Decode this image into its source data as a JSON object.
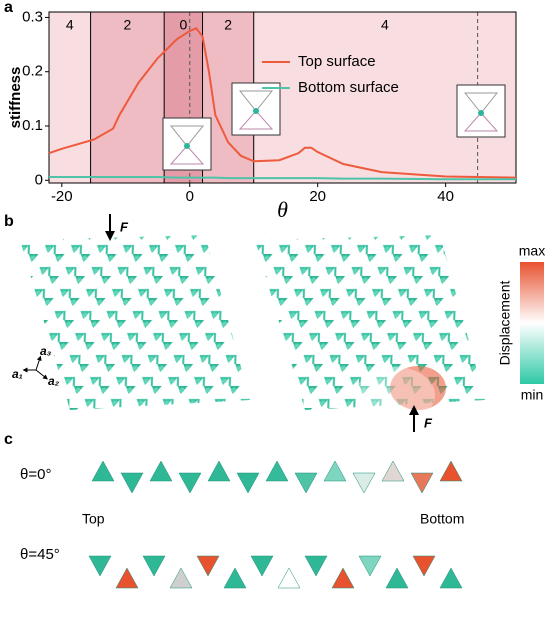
{
  "chart_data": {
    "type": "line",
    "x_label": "θ",
    "y_label": "stiffness",
    "x": [
      -22,
      -20,
      -15,
      -12,
      -11,
      -8,
      -5,
      -2,
      0,
      1,
      2,
      3,
      4,
      6,
      8,
      10,
      14,
      17,
      18,
      19,
      20,
      24,
      30,
      40,
      51
    ],
    "series": [
      {
        "name": "Top surface",
        "color": "#ee5a3c",
        "values": [
          0.05,
          0.058,
          0.075,
          0.095,
          0.12,
          0.18,
          0.225,
          0.26,
          0.275,
          0.28,
          0.265,
          0.2,
          0.12,
          0.07,
          0.045,
          0.035,
          0.037,
          0.05,
          0.06,
          0.06,
          0.052,
          0.03,
          0.015,
          0.007,
          0.005
        ]
      },
      {
        "name": "Bottom surface",
        "color": "#4fc3a8",
        "values": [
          0.006,
          0.006,
          0.006,
          0.006,
          0.006,
          0.006,
          0.006,
          0.005,
          0.005,
          0.005,
          0.005,
          0.005,
          0.005,
          0.004,
          0.004,
          0.004,
          0.004,
          0.004,
          0.004,
          0.004,
          0.004,
          0.003,
          0.003,
          0.002,
          0.002
        ]
      }
    ],
    "regions": [
      {
        "label": "4",
        "from": -22,
        "to": -15.5,
        "color": "#f8dde1"
      },
      {
        "label": "2",
        "from": -15.5,
        "to": -4,
        "color": "#efbcc4"
      },
      {
        "label": "0",
        "from": -4,
        "to": 2,
        "color": "#e39ca8"
      },
      {
        "label": "2",
        "from": 2,
        "to": 10,
        "color": "#efbcc4"
      },
      {
        "label": "4",
        "from": 10,
        "to": 51,
        "color": "#f8dde1"
      }
    ],
    "dashed_lines": [
      0,
      45
    ],
    "xlim": [
      -22,
      51
    ],
    "ylim": [
      -0.005,
      0.31
    ],
    "xticks": [
      -20,
      0,
      20,
      40
    ],
    "yticks": [
      0,
      0.1,
      0.2,
      0.3
    ],
    "legend": "upper right"
  },
  "panel_labels": [
    "a",
    "b",
    "c"
  ],
  "panel_b": {
    "force": "F",
    "force_2": "F",
    "colorbar_max": "max",
    "colorbar_min": "min",
    "colorbar_label": "Displacement",
    "axes": [
      "a₁",
      "a₂",
      "a₃"
    ]
  },
  "panel_c": {
    "row_1": "θ=0°",
    "row_2": "θ=45°",
    "start": "Top",
    "end": "Bottom"
  }
}
